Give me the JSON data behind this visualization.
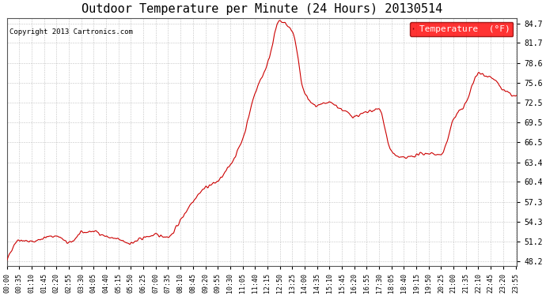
{
  "title": "Outdoor Temperature per Minute (24 Hours) 20130514",
  "copyright": "Copyright 2013 Cartronics.com",
  "legend_label": "Temperature  (°F)",
  "line_color": "#cc0000",
  "background_color": "#ffffff",
  "grid_color": "#aaaaaa",
  "yticks": [
    48.2,
    51.2,
    54.3,
    57.3,
    60.4,
    63.4,
    66.5,
    69.5,
    72.5,
    75.6,
    78.6,
    81.7,
    84.7
  ],
  "ymin": 47.5,
  "ymax": 85.5,
  "xtick_labels": [
    "00:00",
    "00:35",
    "01:10",
    "01:45",
    "02:20",
    "02:55",
    "03:30",
    "04:05",
    "04:40",
    "05:15",
    "05:50",
    "06:25",
    "07:00",
    "07:35",
    "08:10",
    "08:45",
    "09:20",
    "09:55",
    "10:30",
    "11:05",
    "11:40",
    "12:15",
    "12:50",
    "13:25",
    "14:00",
    "14:35",
    "15:10",
    "15:45",
    "16:20",
    "16:55",
    "17:30",
    "18:05",
    "18:40",
    "19:15",
    "19:50",
    "20:25",
    "21:00",
    "21:35",
    "22:10",
    "22:45",
    "23:20",
    "23:55"
  ],
  "key_x_values": [
    0,
    35,
    70,
    105,
    140,
    175,
    210,
    245,
    280,
    315,
    350,
    385,
    420,
    455,
    490,
    525,
    560,
    595,
    630,
    665,
    700,
    735,
    770,
    805,
    840,
    875,
    910,
    945,
    980,
    1015,
    1050,
    1085,
    1120,
    1155,
    1190,
    1225,
    1260,
    1295,
    1330,
    1365,
    1400,
    1435
  ],
  "key_y_values": [
    48.2,
    51.5,
    51.2,
    51.8,
    52.1,
    51.0,
    52.5,
    52.8,
    52.0,
    51.5,
    51.0,
    51.8,
    52.2,
    52.0,
    54.5,
    57.5,
    59.5,
    60.5,
    63.0,
    67.0,
    74.0,
    78.5,
    85.0,
    83.5,
    74.0,
    72.0,
    72.5,
    71.5,
    70.5,
    71.0,
    71.5,
    65.0,
    64.0,
    64.5,
    64.8,
    64.5,
    70.0,
    72.5,
    77.0,
    76.5,
    74.5,
    73.5
  ]
}
